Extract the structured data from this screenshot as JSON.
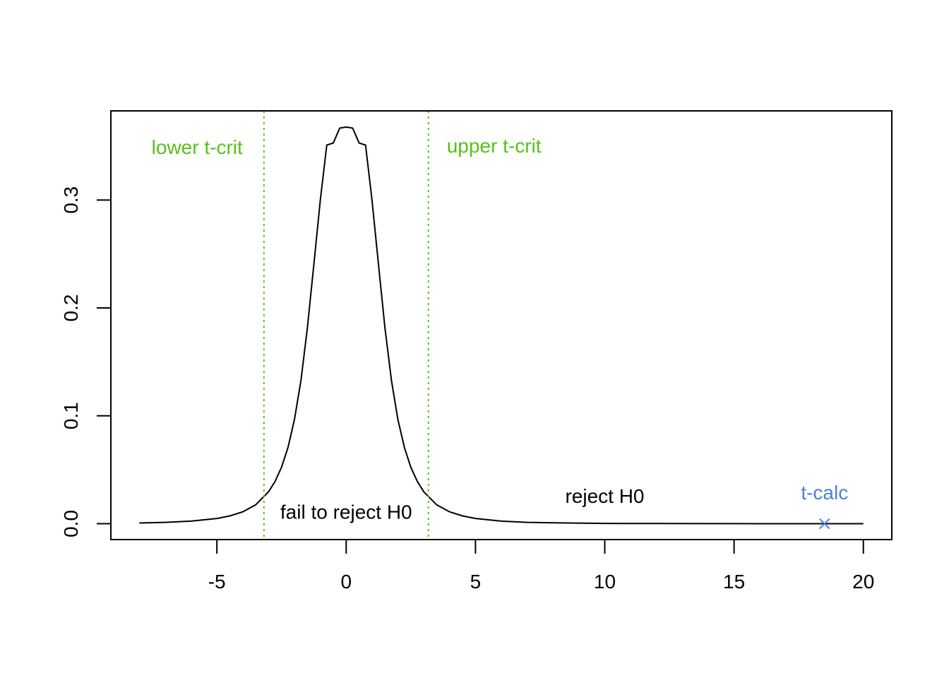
{
  "chart_data": {
    "type": "line",
    "title": "",
    "xlabel": "",
    "ylabel": "",
    "xlim": [
      -9.1,
      21.1
    ],
    "ylim": [
      -0.0147,
      0.3826
    ],
    "x_ticks": [
      -5,
      0,
      5,
      10,
      15,
      20
    ],
    "y_ticks": [
      0.0,
      0.1,
      0.2,
      0.3
    ],
    "x_tick_labels": [
      "-5",
      "0",
      "5",
      "10",
      "15",
      "20"
    ],
    "y_tick_labels": [
      "0.0",
      "0.1",
      "0.2",
      "0.3"
    ],
    "grid": false,
    "series": [
      {
        "color": "#000000",
        "x": [
          -8,
          -7,
          -6,
          -5,
          -4.5,
          -4,
          -3.5,
          -3,
          -2.75,
          -2.5,
          -2.25,
          -2,
          -1.75,
          -1.5,
          -1.25,
          -1,
          -0.75,
          -0.5,
          -0.25,
          0,
          0.25,
          0.5,
          0.75,
          1,
          1.25,
          1.5,
          1.75,
          2,
          2.25,
          2.5,
          2.75,
          3,
          3.5,
          4,
          4.5,
          5,
          6,
          7,
          8,
          10,
          12,
          14,
          16,
          18,
          20
        ],
        "y": [
          0.0007,
          0.0013,
          0.0024,
          0.0049,
          0.0072,
          0.011,
          0.0175,
          0.0297,
          0.0392,
          0.0523,
          0.0707,
          0.0966,
          0.1327,
          0.1813,
          0.2403,
          0.2997,
          0.3509,
          0.3528,
          0.3666,
          0.3676,
          0.3666,
          0.3528,
          0.3509,
          0.2997,
          0.2403,
          0.1813,
          0.1327,
          0.0966,
          0.0707,
          0.0523,
          0.0392,
          0.0297,
          0.0175,
          0.011,
          0.0072,
          0.0049,
          0.0024,
          0.0013,
          0.0008,
          0.0003,
          0.00015,
          8e-05,
          5e-05,
          3e-05,
          2e-05
        ]
      }
    ],
    "vlines": [
      {
        "label": "lower t-crit",
        "x": -3.18,
        "color": "#55c218",
        "style": "dotted"
      },
      {
        "label": "upper t-crit",
        "x": 3.18,
        "color": "#55c218",
        "style": "dotted"
      }
    ],
    "point": {
      "label": "t-calc",
      "x": 18.5,
      "y": 0,
      "color": "#4f7fd8",
      "marker": "x"
    },
    "annotations": [
      {
        "text": "fail to reject H0",
        "x": 0,
        "y": 0.011,
        "color": "#000000"
      },
      {
        "text": "reject H0",
        "x": 10,
        "y": 0.026,
        "color": "#000000"
      }
    ]
  }
}
